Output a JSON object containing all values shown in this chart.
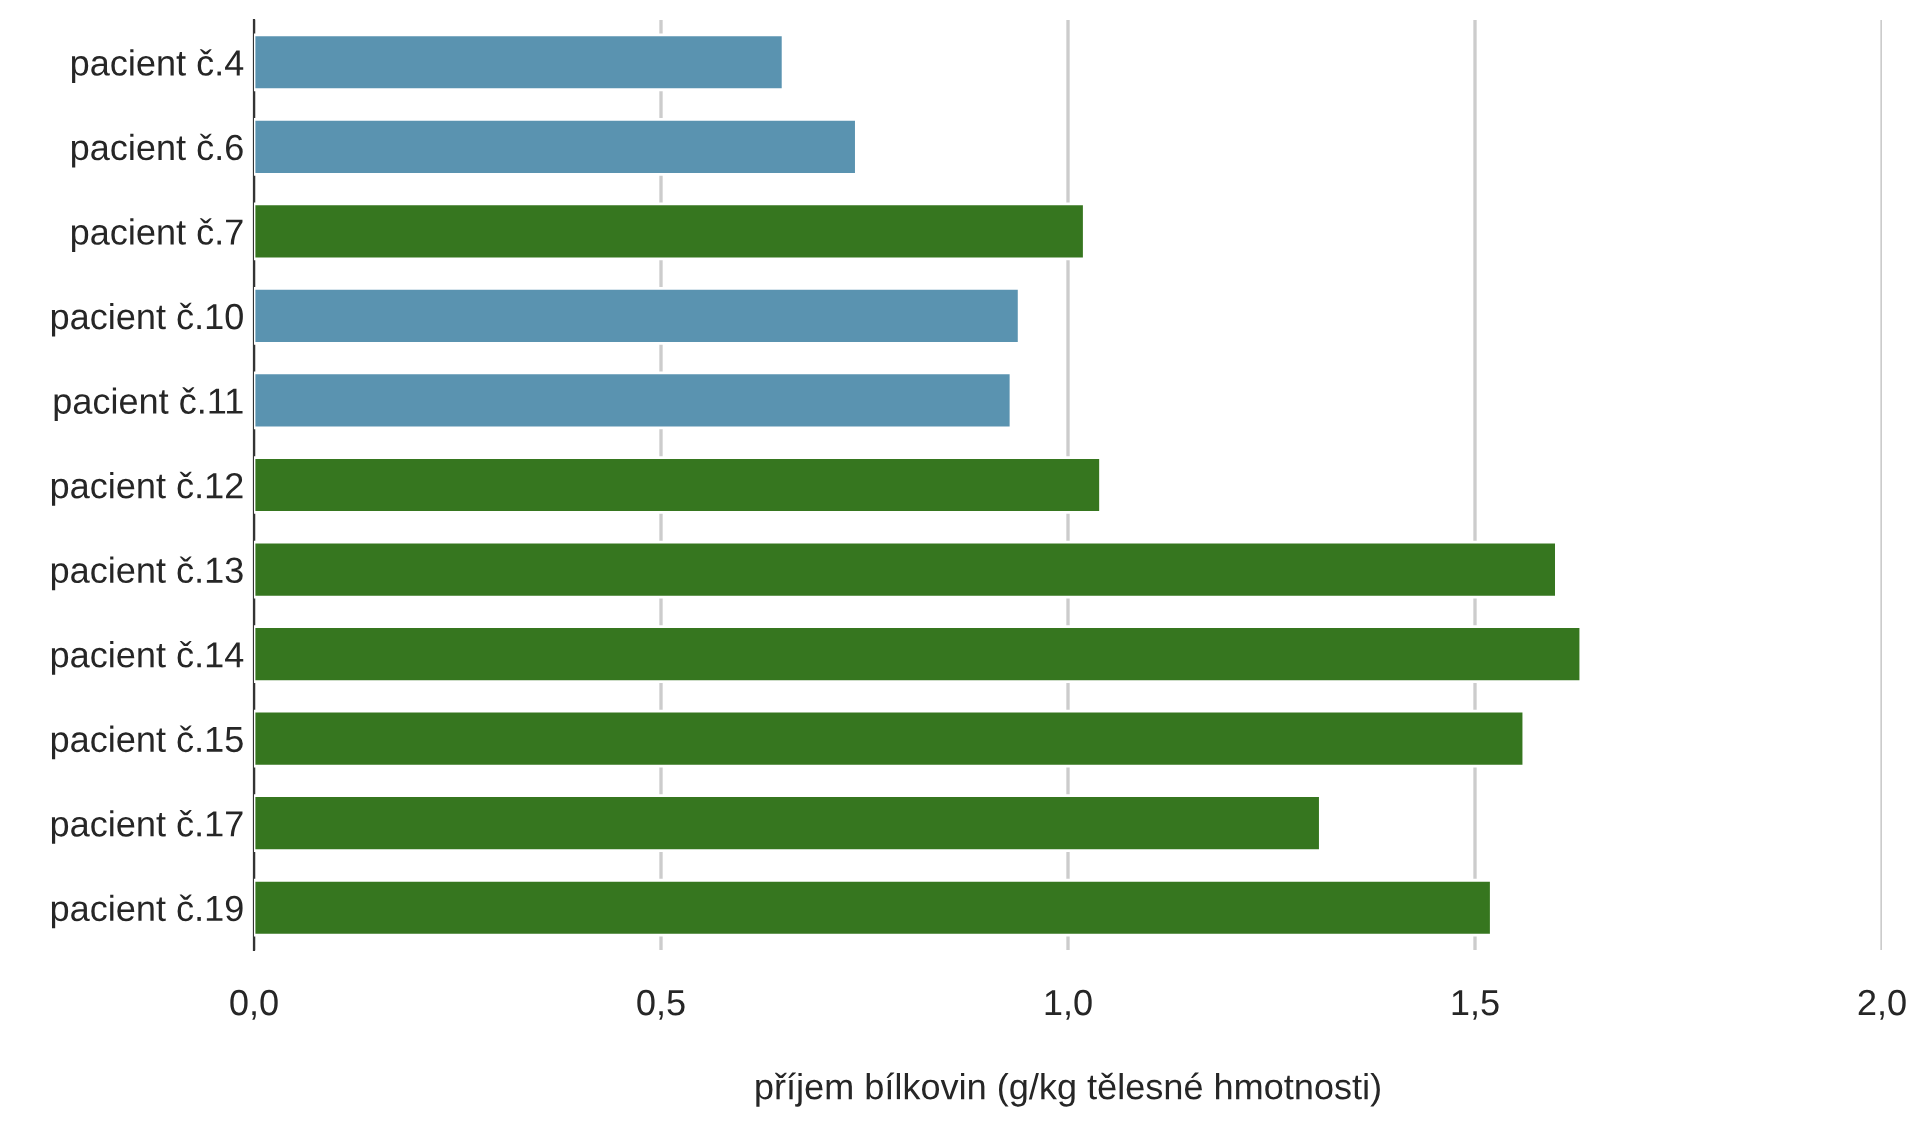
{
  "chart_data": {
    "type": "bar",
    "orientation": "horizontal",
    "xlabel": "příjem bílkovin (g/kg tělesné hmotnosti)",
    "categories": [
      "pacient č.4",
      "pacient č.6",
      "pacient č.7",
      "pacient č.10",
      "pacient č.11",
      "pacient č.12",
      "pacient č.13",
      "pacient č.14",
      "pacient č.15",
      "pacient č.17",
      "pacient č.19"
    ],
    "values": [
      0.65,
      0.74,
      1.02,
      0.94,
      0.93,
      1.04,
      1.6,
      1.63,
      1.56,
      1.31,
      1.52
    ],
    "colors": [
      "#5a93b0",
      "#5a93b0",
      "#36761f",
      "#5a93b0",
      "#5a93b0",
      "#36761f",
      "#36761f",
      "#36761f",
      "#36761f",
      "#36761f",
      "#36761f"
    ],
    "xlim": [
      0,
      2
    ],
    "xticks": [
      {
        "value": 0,
        "label": "0,0"
      },
      {
        "value": 0.5,
        "label": "0,5"
      },
      {
        "value": 1,
        "label": "1,0"
      },
      {
        "value": 1.5,
        "label": "1,5"
      },
      {
        "value": 2,
        "label": "2,0"
      }
    ],
    "grid": "x",
    "legend": false
  }
}
